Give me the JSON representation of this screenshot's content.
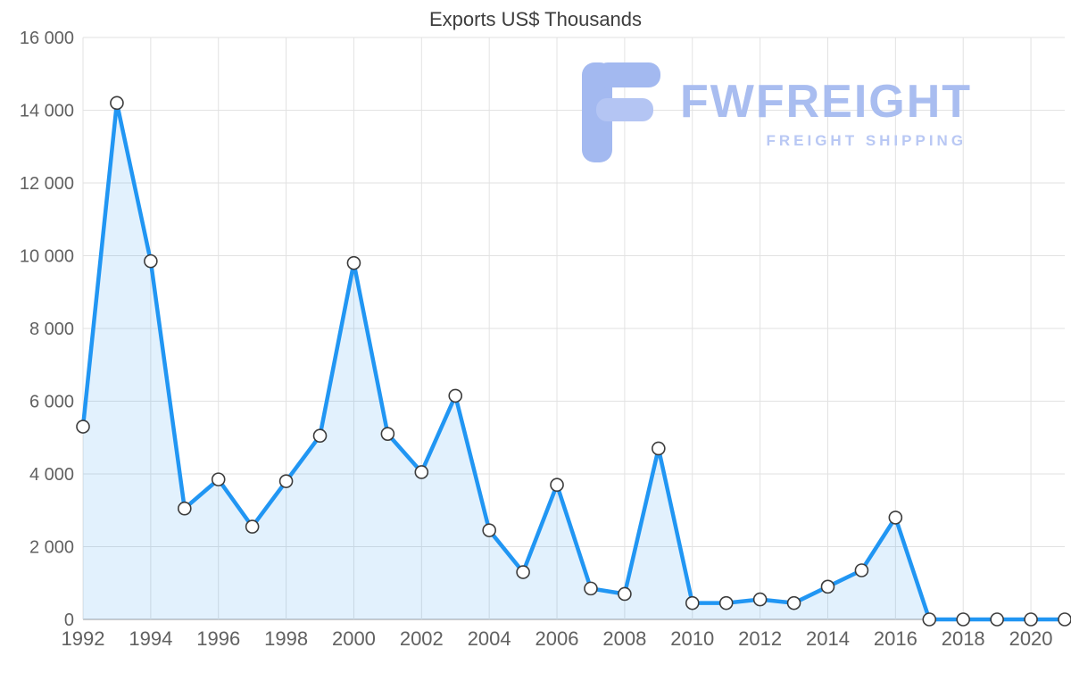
{
  "chart": {
    "title": "Exports US$ Thousands"
  },
  "watermark": {
    "brand": "FWFREIGHT",
    "tagline": "FREIGHT SHIPPING",
    "color": "#a9bdf0"
  },
  "chart_data": {
    "type": "area",
    "title": "Exports US$ Thousands",
    "xlabel": "",
    "ylabel": "",
    "x": [
      1992,
      1993,
      1994,
      1995,
      1996,
      1997,
      1998,
      1999,
      2000,
      2001,
      2002,
      2003,
      2004,
      2005,
      2006,
      2007,
      2008,
      2009,
      2010,
      2011,
      2012,
      2013,
      2014,
      2015,
      2016,
      2017,
      2018,
      2019,
      2020,
      2021
    ],
    "series": [
      {
        "name": "Exports US$ Thousands",
        "values": [
          5300,
          14200,
          9850,
          3050,
          3850,
          2550,
          3800,
          5050,
          9800,
          5100,
          4050,
          6150,
          2450,
          1300,
          3700,
          850,
          700,
          4700,
          450,
          450,
          550,
          450,
          900,
          1350,
          2800,
          0,
          0,
          0,
          0,
          0
        ]
      }
    ],
    "ylim": [
      0,
      16000
    ],
    "ytick_step": 2000,
    "xtick_step": 2,
    "grid": true,
    "legend": "none",
    "line_color": "#2196f3",
    "fill_color": "rgba(33,150,243,0.13)",
    "marker": "circle-white",
    "marker_stroke": "#3c3c3c",
    "gridline_color": "#e2e2e2",
    "axis_line_color": "#9e9e9e",
    "tick_label_color": "#616161"
  }
}
